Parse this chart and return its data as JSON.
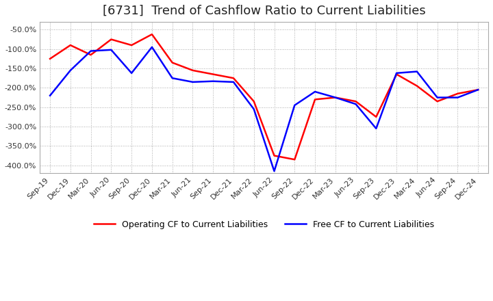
{
  "title": "[6731]  Trend of Cashflow Ratio to Current Liabilities",
  "ylim": [
    -420,
    -30
  ],
  "yticks": [
    -50,
    -100,
    -150,
    -200,
    -250,
    -300,
    -350,
    -400
  ],
  "background_color": "#ffffff",
  "plot_background_color": "#ffffff",
  "grid_color": "#aaaaaa",
  "title_fontsize": 13,
  "legend_labels": [
    "Operating CF to Current Liabilities",
    "Free CF to Current Liabilities"
  ],
  "line_colors": [
    "#ff0000",
    "#0000ff"
  ],
  "x_labels": [
    "Sep-19",
    "Dec-19",
    "Mar-20",
    "Jun-20",
    "Sep-20",
    "Dec-20",
    "Mar-21",
    "Jun-21",
    "Sep-21",
    "Dec-21",
    "Mar-22",
    "Jun-22",
    "Sep-22",
    "Dec-22",
    "Mar-23",
    "Jun-23",
    "Sep-23",
    "Dec-23",
    "Mar-24",
    "Jun-24",
    "Sep-24",
    "Dec-24"
  ],
  "operating_cf": [
    -125,
    -90,
    -115,
    -75,
    -90,
    -62,
    -135,
    -155,
    -165,
    -175,
    -235,
    -375,
    -385,
    -230,
    -225,
    -235,
    -275,
    -165,
    -195,
    -235,
    -215,
    -205
  ],
  "free_cf": [
    -220,
    -155,
    -105,
    -102,
    -162,
    -95,
    -175,
    -185,
    -183,
    -185,
    -255,
    -415,
    -245,
    -210,
    -225,
    -242,
    -305,
    -162,
    -158,
    -225,
    -225,
    -205
  ]
}
